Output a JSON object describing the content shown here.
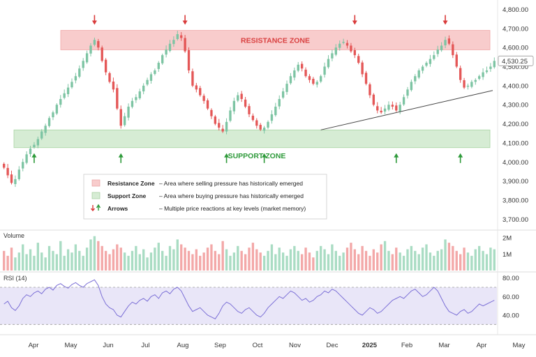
{
  "chart_data": {
    "type": "candlestick",
    "price_axis": {
      "ylim": [
        3650,
        4820
      ],
      "ticks": [
        "4,800.00",
        "4,700.00",
        "4,600.00",
        "4,500.00",
        "4,400.00",
        "4,300.00",
        "4,200.00",
        "4,100.00",
        "4,000.00",
        "3,900.00",
        "3,800.00",
        "3,700.00"
      ],
      "tick_values": [
        4800,
        4700,
        4600,
        4500,
        4400,
        4300,
        4200,
        4100,
        4000,
        3900,
        3800,
        3700
      ]
    },
    "last_price": "4,530.25",
    "x_axis": {
      "labels": [
        "Apr",
        "May",
        "Jun",
        "Jul",
        "Aug",
        "Sep",
        "Oct",
        "Nov",
        "Dec",
        "2025",
        "Feb",
        "Mar",
        "Apr",
        "May"
      ],
      "bold_labels": [
        "2025"
      ]
    },
    "resistance_zone": {
      "label": "RESISTANCE ZONE",
      "low": 4588,
      "high": 4690,
      "color": "#f8cccc"
    },
    "support_zone": {
      "label": "SUPPORT ZONE",
      "low": 4075,
      "high": 4168,
      "color": "#d6ecd4"
    },
    "trendline": {
      "from": {
        "index": 84,
        "price": 4168
      },
      "to": {
        "index": 130,
        "price": 4375
      }
    },
    "legend": [
      {
        "icon": "red-swatch",
        "name": "Resistance Zone",
        "desc": "– Area where selling pressure has historically emerged"
      },
      {
        "icon": "green-swatch",
        "name": "Support Zone",
        "desc": "– Area where buying pressure has historically emerged"
      },
      {
        "icon": "arrows",
        "name": "Arrows",
        "desc": "– Multiple price reactions at key levels (market memory)"
      }
    ],
    "down_arrows_at_index": [
      24,
      48,
      93,
      117
    ],
    "up_arrows_at_index": [
      8,
      31,
      59,
      69,
      104,
      121
    ],
    "close_prices": [
      3970,
      3930,
      3890,
      3910,
      3960,
      4000,
      4040,
      4070,
      4090,
      4120,
      4160,
      4190,
      4230,
      4260,
      4300,
      4330,
      4360,
      4390,
      4420,
      4450,
      4490,
      4530,
      4570,
      4610,
      4640,
      4600,
      4530,
      4470,
      4420,
      4380,
      4280,
      4190,
      4240,
      4290,
      4320,
      4340,
      4370,
      4400,
      4430,
      4460,
      4480,
      4520,
      4560,
      4590,
      4620,
      4640,
      4670,
      4650,
      4580,
      4480,
      4400,
      4380,
      4350,
      4320,
      4280,
      4240,
      4200,
      4180,
      4160,
      4210,
      4270,
      4320,
      4350,
      4330,
      4290,
      4250,
      4220,
      4190,
      4170,
      4180,
      4210,
      4250,
      4290,
      4330,
      4370,
      4410,
      4450,
      4480,
      4510,
      4490,
      4450,
      4430,
      4410,
      4420,
      4450,
      4500,
      4540,
      4570,
      4600,
      4620,
      4630,
      4610,
      4580,
      4560,
      4520,
      4460,
      4410,
      4350,
      4300,
      4270,
      4260,
      4280,
      4300,
      4290,
      4270,
      4300,
      4340,
      4380,
      4420,
      4450,
      4480,
      4500,
      4520,
      4540,
      4560,
      4590,
      4610,
      4640,
      4620,
      4560,
      4500,
      4430,
      4390,
      4400,
      4420,
      4430,
      4450,
      4470,
      4480,
      4500,
      4530
    ],
    "volume_axis": {
      "ticks": [
        "2M",
        "1M"
      ],
      "tick_values": [
        2000000,
        1000000
      ],
      "label": "Volume"
    },
    "volume": [
      1.2,
      0.9,
      1.4,
      0.8,
      1.1,
      1.6,
      1.0,
      1.3,
      0.9,
      1.7,
      1.1,
      0.8,
      1.5,
      1.2,
      1.0,
      1.8,
      0.9,
      1.3,
      1.1,
      1.6,
      1.2,
      0.9,
      1.4,
      1.9,
      2.1,
      1.8,
      1.5,
      1.2,
      1.0,
      1.3,
      1.6,
      1.4,
      1.1,
      0.9,
      1.2,
      1.5,
      1.0,
      1.3,
      0.8,
      1.1,
      1.4,
      1.7,
      1.2,
      0.9,
      1.5,
      1.3,
      1.9,
      1.6,
      1.4,
      1.2,
      1.0,
      1.3,
      0.9,
      1.1,
      1.4,
      1.6,
      1.2,
      1.0,
      1.8,
      1.3,
      0.9,
      1.1,
      1.5,
      1.2,
      1.0,
      1.4,
      1.7,
      1.3,
      1.1,
      0.9,
      1.2,
      1.6,
      1.0,
      1.4,
      1.1,
      0.9,
      1.3,
      1.5,
      1.2,
      1.0,
      1.4,
      1.1,
      0.8,
      1.2,
      1.5,
      1.3,
      1.0,
      1.6,
      1.2,
      0.9,
      1.1,
      1.4,
      1.7,
      1.3,
      1.0,
      1.5,
      1.2,
      0.9,
      1.3,
      1.1,
      1.6,
      1.8,
      1.2,
      1.0,
      1.4,
      1.1,
      0.9,
      1.3,
      1.5,
      1.2,
      1.0,
      1.4,
      1.6,
      1.1,
      0.9,
      1.2,
      1.3,
      1.9,
      1.7,
      1.5,
      1.2,
      1.0,
      1.4,
      1.1,
      0.9,
      1.3,
      1.5,
      1.2,
      1.0,
      1.4,
      1.3
    ],
    "rsi": {
      "label": "RSI (14)",
      "ticks": [
        "80.00",
        "60.00",
        "40.00"
      ],
      "tick_values": [
        80,
        60,
        40
      ],
      "band": [
        30,
        70
      ],
      "ylim": [
        22,
        85
      ],
      "values": [
        52,
        55,
        48,
        45,
        50,
        58,
        62,
        60,
        64,
        66,
        63,
        68,
        70,
        67,
        72,
        74,
        71,
        69,
        73,
        75,
        72,
        70,
        74,
        76,
        78,
        72,
        60,
        52,
        48,
        46,
        40,
        38,
        44,
        50,
        54,
        52,
        56,
        58,
        55,
        60,
        62,
        58,
        64,
        66,
        63,
        68,
        70,
        66,
        58,
        50,
        44,
        46,
        48,
        44,
        40,
        38,
        36,
        42,
        50,
        54,
        52,
        48,
        44,
        42,
        46,
        48,
        44,
        40,
        38,
        42,
        48,
        52,
        56,
        60,
        58,
        62,
        66,
        64,
        60,
        56,
        58,
        54,
        56,
        60,
        62,
        66,
        64,
        68,
        66,
        62,
        58,
        54,
        50,
        46,
        42,
        40,
        44,
        48,
        46,
        42,
        44,
        48,
        52,
        56,
        58,
        60,
        58,
        62,
        66,
        68,
        64,
        60,
        62,
        66,
        70,
        66,
        58,
        50,
        44,
        42,
        40,
        44,
        46,
        42,
        44,
        48,
        52,
        50,
        52,
        54,
        56
      ]
    }
  },
  "pane_labels": {
    "volume": "Volume",
    "rsi": "RSI (14)"
  },
  "colors": {
    "up": "#7dc4a3",
    "down": "#e45757",
    "vol_up": "#a9dcc3",
    "vol_down": "#f3a8a8",
    "rsi_line": "#7b6fd6",
    "rsi_band": "#e9e6f8",
    "trend": "#444444"
  }
}
